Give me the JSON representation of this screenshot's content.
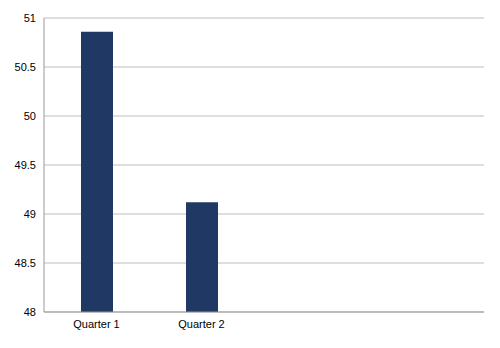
{
  "chart_data": {
    "type": "bar",
    "categories": [
      "Quarter 1",
      "Quarter 2"
    ],
    "values": [
      50.86,
      49.12
    ],
    "color": "#1f3864",
    "ylim": [
      48,
      51
    ],
    "yticks": [
      48,
      48.5,
      49,
      49.5,
      50,
      50.5,
      51
    ],
    "grid": true
  }
}
